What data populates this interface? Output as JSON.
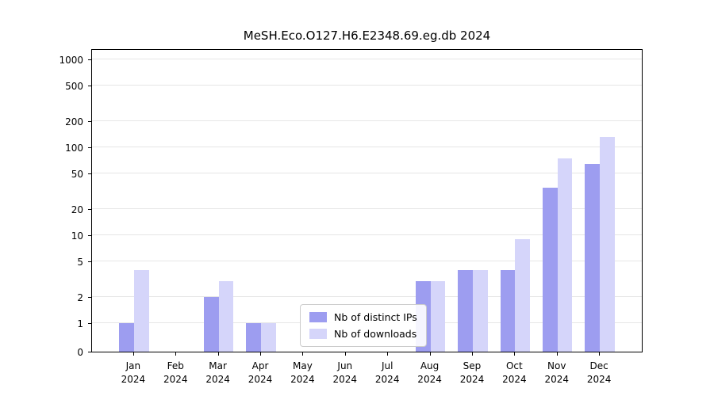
{
  "title": "MeSH.Eco.O127.H6.E2348.69.eg.db 2024",
  "chart_data": {
    "type": "bar",
    "title": "MeSH.Eco.O127.H6.E2348.69.eg.db 2024",
    "categories": [
      "Jan 2024",
      "Feb 2024",
      "Mar 2024",
      "Apr 2024",
      "May 2024",
      "Jun 2024",
      "Jul 2024",
      "Aug 2024",
      "Sep 2024",
      "Oct 2024",
      "Nov 2024",
      "Dec 2024"
    ],
    "series": [
      {
        "name": "Nb of distinct IPs",
        "color": "#9d9df0",
        "values": [
          1,
          0,
          2,
          1,
          0,
          0,
          0,
          3,
          4,
          4,
          35,
          65
        ]
      },
      {
        "name": "Nb of downloads",
        "color": "#d5d5fa",
        "values": [
          4,
          0,
          3,
          1,
          0,
          0,
          0,
          3,
          4,
          9,
          75,
          130
        ]
      }
    ],
    "xlabel": "",
    "ylabel": "",
    "yscale": "symlog",
    "yticks": [
      0,
      1,
      2,
      5,
      10,
      20,
      50,
      100,
      200,
      500,
      1000
    ],
    "ylim": [
      0,
      1200
    ],
    "grid": true,
    "legend_position": "bottom-center"
  }
}
